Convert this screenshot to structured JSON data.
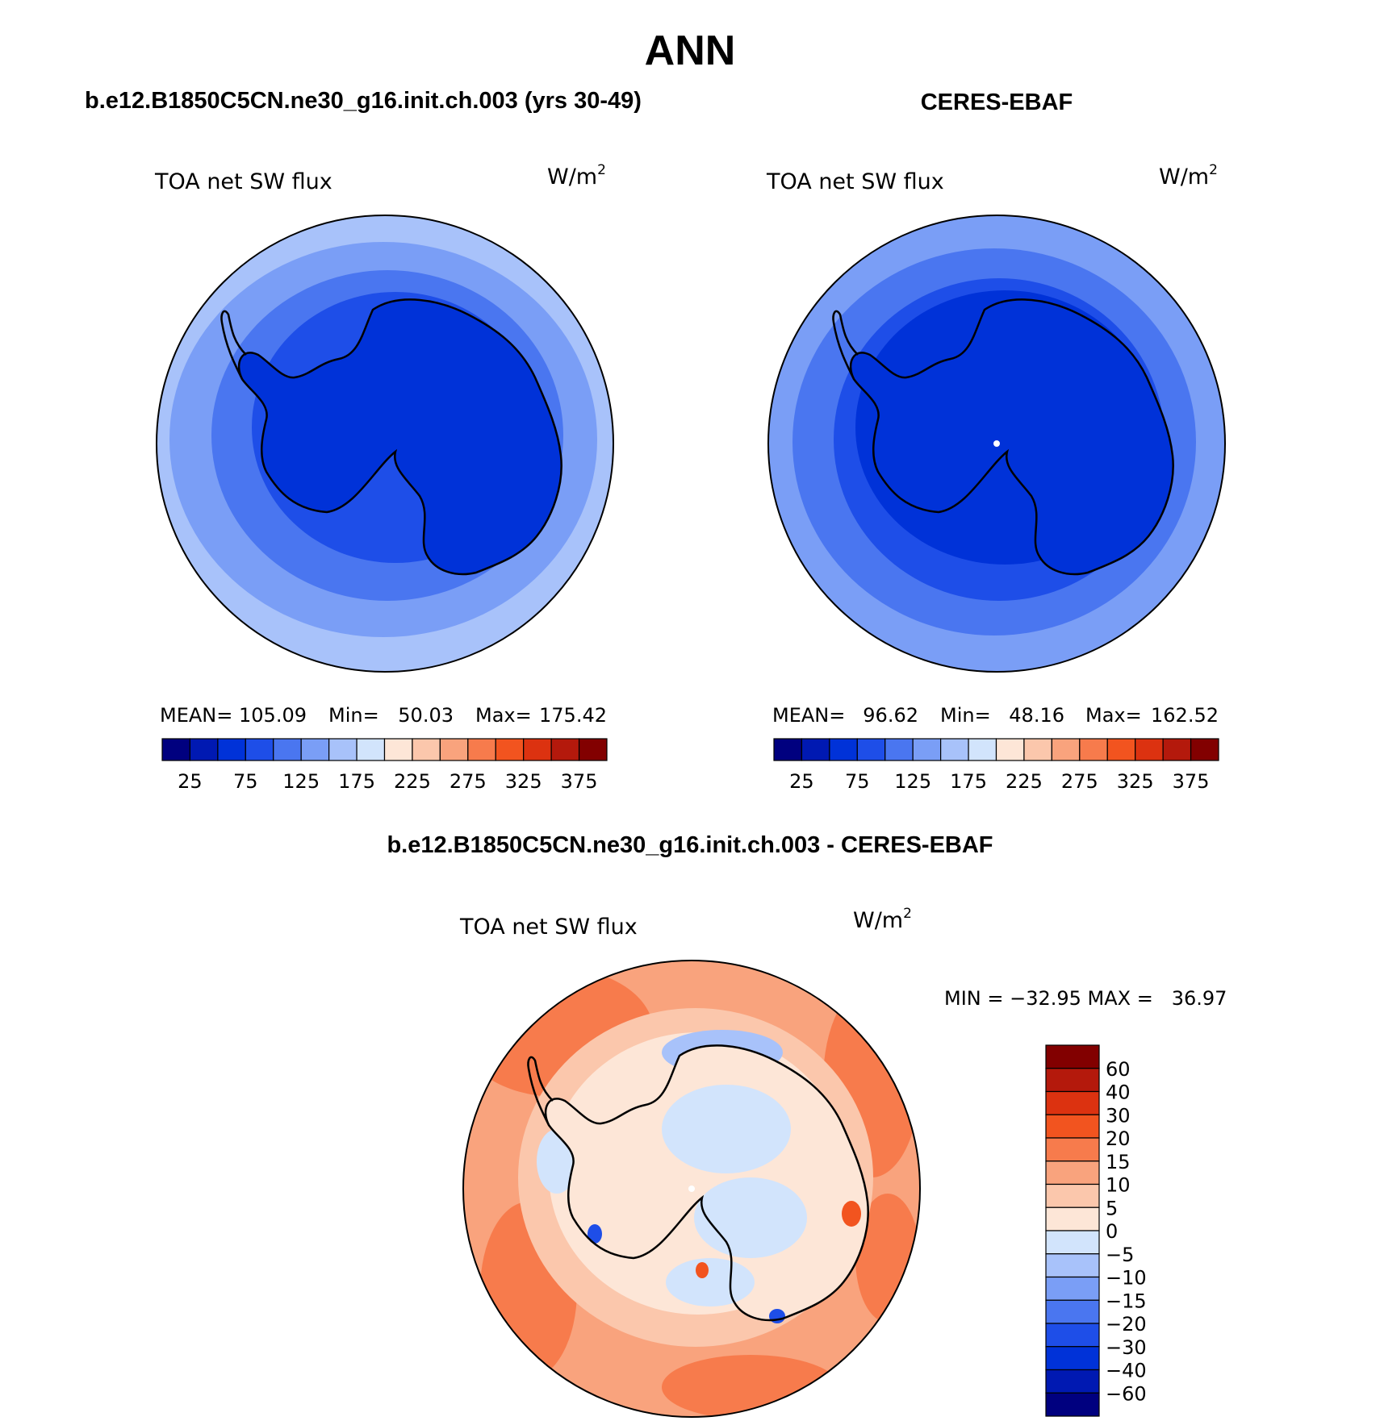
{
  "page": {
    "title": "ANN"
  },
  "colors": {
    "seq": [
      "#00007f",
      "#0019b2",
      "#0032d8",
      "#1e4ee8",
      "#4a76f0",
      "#7a9ef6",
      "#a8c2fa",
      "#d2e4fc",
      "#fde6d7",
      "#fbc7ac",
      "#f9a37d",
      "#f77b4c",
      "#f2541f",
      "#dc3210",
      "#b4190c",
      "#820000"
    ],
    "diff": [
      "#00007f",
      "#0019b2",
      "#0032d8",
      "#1e4ee8",
      "#4a76f0",
      "#7a9ef6",
      "#a8c2fa",
      "#d2e4fc",
      "#fde6d7",
      "#fbc7ac",
      "#f9a37d",
      "#f77b4c",
      "#f2541f",
      "#dc3210",
      "#b4190c",
      "#820000"
    ],
    "land_outline": "#000000",
    "panel_border": "#000000"
  },
  "panels": {
    "model": {
      "title": "b.e12.B1850C5CN.ne30_g16.init.ch.003 (yrs 30-49)",
      "var_label": "TOA net SW flux",
      "units": "W/m",
      "units_sup": "2",
      "stats": {
        "mean_label": "MEAN=",
        "mean": "105.09",
        "min_label": "Min=",
        "min": "50.03",
        "max_label": "Max=",
        "max": "175.42"
      },
      "colorbar_ticks": [
        "25",
        "75",
        "125",
        "175",
        "225",
        "275",
        "325",
        "375"
      ]
    },
    "obs": {
      "title": "CERES-EBAF",
      "var_label": "TOA net SW flux",
      "units": "W/m",
      "units_sup": "2",
      "stats": {
        "mean_label": "MEAN=",
        "mean": "96.62",
        "min_label": "Min=",
        "min": "48.16",
        "max_label": "Max=",
        "max": "162.52"
      },
      "colorbar_ticks": [
        "25",
        "75",
        "125",
        "175",
        "225",
        "275",
        "325",
        "375"
      ]
    },
    "diff": {
      "title": "b.e12.B1850C5CN.ne30_g16.init.ch.003 - CERES-EBAF",
      "var_label": "TOA net SW flux",
      "units": "W/m",
      "units_sup": "2",
      "minmax_text": "MIN = −32.95 MAX =   36.97",
      "colorbar_ticks": [
        "60",
        "40",
        "30",
        "20",
        "15",
        "10",
        "5",
        "0",
        "−5",
        "−10",
        "−15",
        "−20",
        "−30",
        "−40",
        "−60"
      ]
    }
  },
  "chart_data": [
    {
      "type": "heatmap",
      "projection": "south-polar-stereographic",
      "title": "b.e12.B1850C5CN.ne30_g16.init.ch.003 (yrs 30-49)",
      "variable": "TOA net SW flux",
      "units": "W/m2",
      "mean": 105.09,
      "min": 50.03,
      "max": 175.42,
      "levels": [
        25,
        50,
        75,
        100,
        125,
        150,
        175,
        200,
        225,
        250,
        275,
        300,
        325,
        350,
        375
      ],
      "radial_bands_pole_to_edge": [
        50,
        75,
        100,
        125,
        150
      ]
    },
    {
      "type": "heatmap",
      "projection": "south-polar-stereographic",
      "title": "CERES-EBAF",
      "variable": "TOA net SW flux",
      "units": "W/m2",
      "mean": 96.62,
      "min": 48.16,
      "max": 162.52,
      "levels": [
        25,
        50,
        75,
        100,
        125,
        150,
        175,
        200,
        225,
        250,
        275,
        300,
        325,
        350,
        375
      ],
      "radial_bands_pole_to_edge": [
        50,
        75,
        100,
        125,
        150
      ]
    },
    {
      "type": "heatmap",
      "projection": "south-polar-stereographic",
      "title": "b.e12.B1850C5CN.ne30_g16.init.ch.003 - CERES-EBAF",
      "variable": "TOA net SW flux",
      "units": "W/m2",
      "min": -32.95,
      "max": 36.97,
      "levels": [
        -60,
        -40,
        -30,
        -20,
        -15,
        -10,
        -5,
        0,
        5,
        10,
        15,
        20,
        30,
        40,
        60
      ]
    }
  ]
}
